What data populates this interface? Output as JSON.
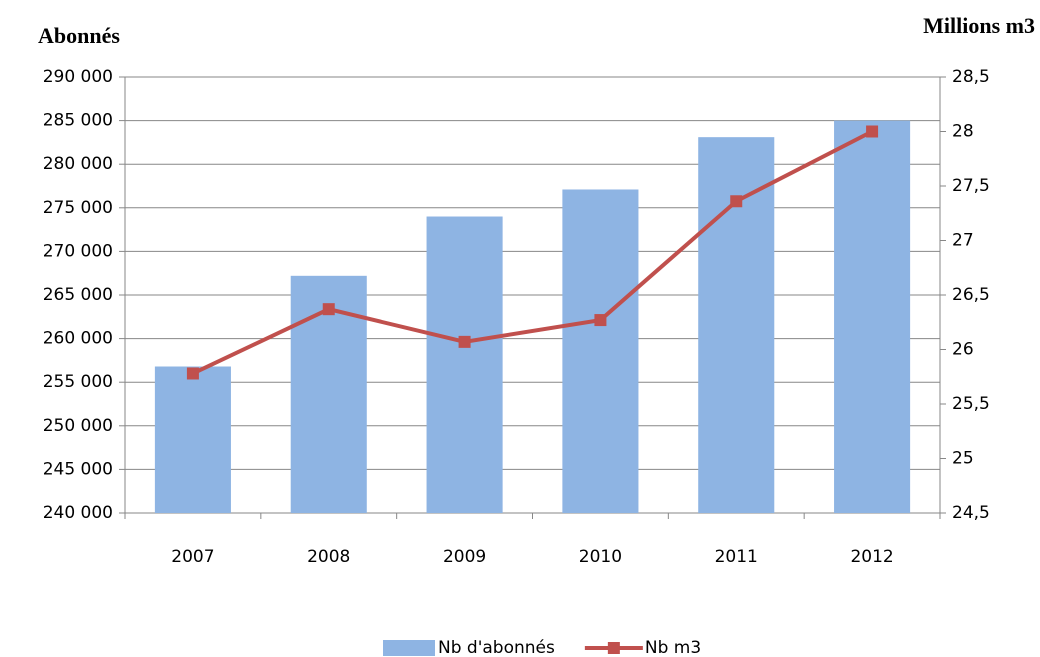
{
  "chart_data": {
    "type": "bar",
    "y_axis_title": "Abonnés",
    "y2_axis_title": "Millions m3",
    "categories": [
      "2007",
      "2008",
      "2009",
      "2010",
      "2011",
      "2012"
    ],
    "series": [
      {
        "name": "Nb d'abonnés",
        "type": "bar",
        "color": "#8eb4e3",
        "values": [
          256800,
          267200,
          274000,
          277100,
          283100,
          285000
        ]
      },
      {
        "name": "Nb m3",
        "type": "line",
        "axis": "y2",
        "color": "#c0504d",
        "values": [
          25.78,
          26.37,
          26.07,
          26.27,
          27.36,
          28.0
        ]
      }
    ],
    "ylim": [
      240000,
      290000
    ],
    "yticks": [
      {
        "value": 240000,
        "label": "240 000"
      },
      {
        "value": 245000,
        "label": "245 000"
      },
      {
        "value": 250000,
        "label": "250 000"
      },
      {
        "value": 255000,
        "label": "255 000"
      },
      {
        "value": 260000,
        "label": "260 000"
      },
      {
        "value": 265000,
        "label": "265 000"
      },
      {
        "value": 270000,
        "label": "270 000"
      },
      {
        "value": 275000,
        "label": "275 000"
      },
      {
        "value": 280000,
        "label": "280 000"
      },
      {
        "value": 285000,
        "label": "285 000"
      },
      {
        "value": 290000,
        "label": "290 000"
      }
    ],
    "y2lim": [
      24.5,
      28.5
    ],
    "y2ticks": [
      {
        "value": 24.5,
        "label": "24,5"
      },
      25,
      {
        "value": 25.5,
        "label": "25,5"
      },
      26,
      {
        "value": 26.5,
        "label": "26,5"
      },
      27,
      {
        "value": 27.5,
        "label": "27,5"
      },
      28,
      {
        "value": 28.5,
        "label": "28,5"
      }
    ],
    "grid": true,
    "legend": "bottom"
  }
}
